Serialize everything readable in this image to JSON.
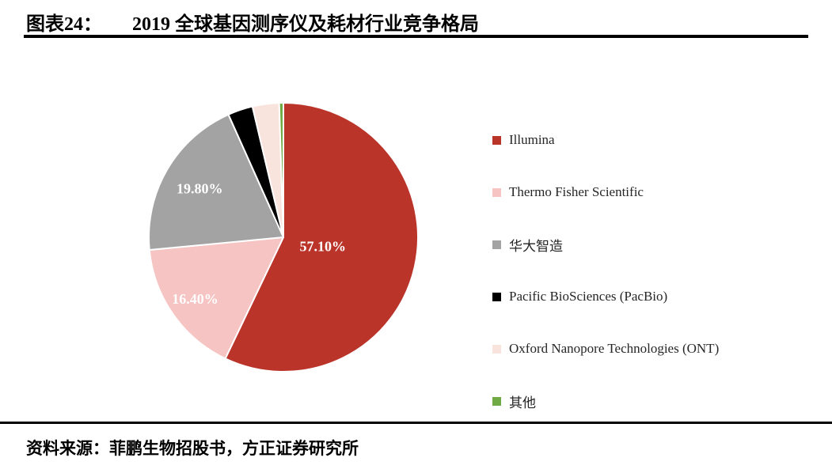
{
  "page": {
    "header": {
      "index_label": "图表24：",
      "title": "2019 全球基因测序仪及耗材行业竞争格局"
    },
    "footer": {
      "source": "资料来源：菲鹏生物招股书，方正证券研究所"
    }
  },
  "chart_data": {
    "type": "pie",
    "title": "2019 全球基因测序仪及耗材行业竞争格局",
    "legend_position": "right",
    "start_angle_deg": 0,
    "direction": "clockwise",
    "slices": [
      {
        "label": "Illumina",
        "value": 57.1,
        "color": "#ba342a",
        "data_label": "57.10%",
        "label_color": "#ffffff",
        "label_radius": 0.3
      },
      {
        "label": "Thermo Fisher Scientific",
        "value": 16.4,
        "color": "#f5c4c3",
        "data_label": "16.40%",
        "label_color": "#ffffff",
        "label_radius": 0.8
      },
      {
        "label": "华大智造",
        "value": 19.8,
        "color": "#a3a3a3",
        "data_label": "19.80%",
        "label_color": "#ffffff",
        "label_radius": 0.72
      },
      {
        "label": "Pacific BioSciences (PacBio)",
        "value": 3.0,
        "color": "#000000",
        "data_label": "",
        "label_color": "#ffffff",
        "label_radius": 0.6
      },
      {
        "label": "Oxford Nanopore Technologies (ONT)",
        "value": 3.2,
        "color": "#f9e4dd",
        "data_label": "",
        "label_color": "#ffffff",
        "label_radius": 0.6
      },
      {
        "label": "其他",
        "value": 0.5,
        "color": "#6faa44",
        "data_label": "",
        "label_color": "#ffffff",
        "label_radius": 0.6
      }
    ]
  }
}
